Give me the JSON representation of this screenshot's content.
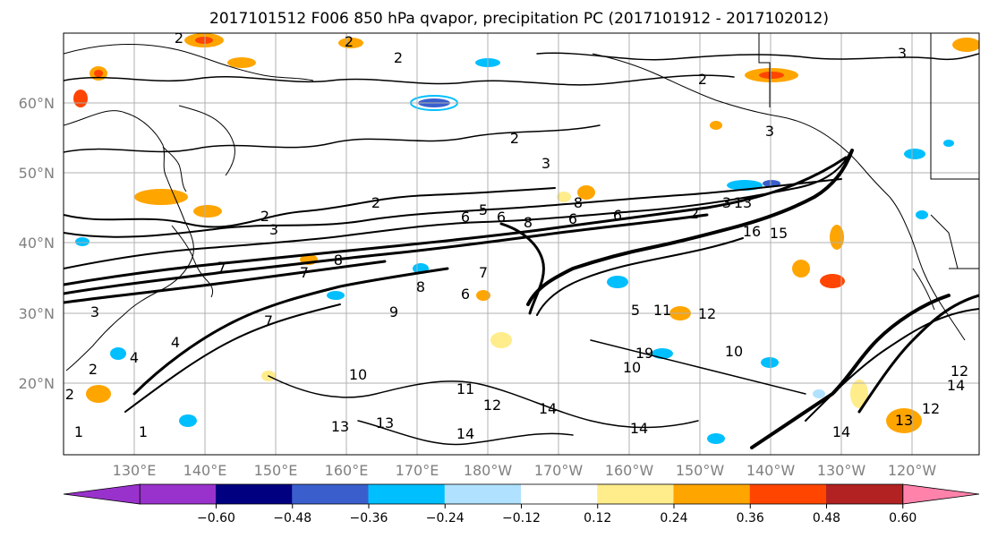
{
  "figure": {
    "title": "2017101512 F006 850 hPa qvapor, precipitation PC (2017101912 - 2017102012)"
  },
  "map": {
    "lat_labels": [
      "60°N",
      "50°N",
      "40°N",
      "30°N",
      "20°N"
    ],
    "lon_labels": [
      "130°E",
      "140°E",
      "150°E",
      "160°E",
      "170°E",
      "180°W",
      "170°W",
      "160°W",
      "150°W",
      "140°W",
      "130°W",
      "120°W"
    ],
    "contour_labels": [
      "2",
      "2",
      "2",
      "3",
      "2",
      "3",
      "2",
      "3",
      "2",
      "2",
      "3",
      "6",
      "5",
      "6",
      "8",
      "6",
      "8",
      "6",
      "7",
      "7",
      "8",
      "8",
      "6",
      "9",
      "7",
      "10",
      "11",
      "12",
      "13",
      "13",
      "14",
      "14",
      "14",
      "14",
      "13",
      "12",
      "14",
      "1",
      "2",
      "1",
      "2",
      "3",
      "4",
      "4",
      "10",
      "2",
      "3",
      "13",
      "16",
      "15",
      "19",
      "11",
      "12",
      "7",
      "10",
      "5",
      "12"
    ],
    "colors": {
      "land_outline": "#000000",
      "gridline": "#b0b0b0",
      "contour": "#000000"
    }
  },
  "colorbar": {
    "tick_labels": [
      "−0.60",
      "−0.48",
      "−0.36",
      "−0.24",
      "−0.12",
      "0.12",
      "0.24",
      "0.36",
      "0.48",
      "0.60"
    ],
    "colors": [
      "#9932cc",
      "#000080",
      "#3a5fcd",
      "#00bfff",
      "#b0e2ff",
      "#ffffff",
      "#ffec8b",
      "#ffa500",
      "#ff4500",
      "#b22222",
      "#ff82ab"
    ]
  }
}
